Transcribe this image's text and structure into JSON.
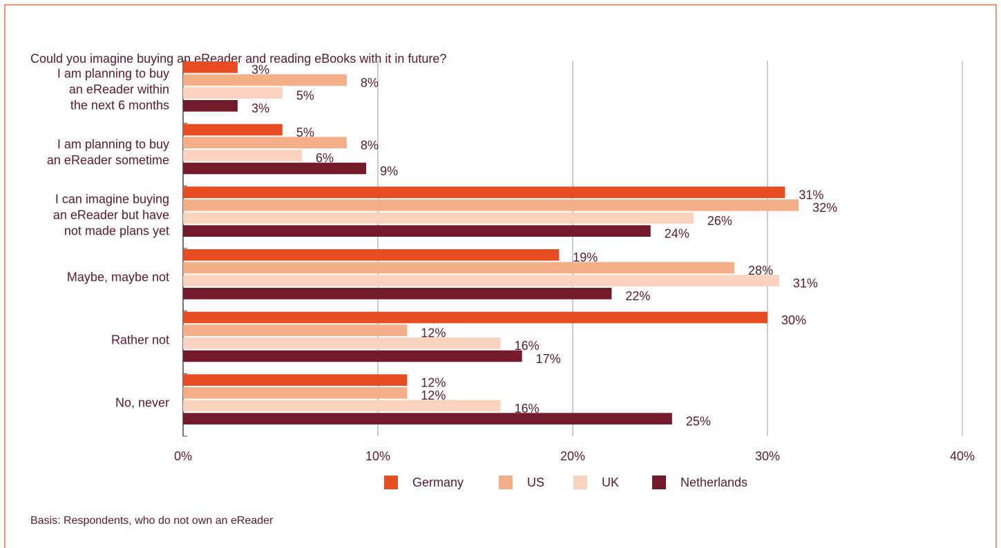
{
  "chart_data": {
    "type": "bar",
    "orientation": "horizontal",
    "title": "Could you imagine buying an eReader and reading eBooks with it in future?",
    "note": "Basis: Respondents, who do not own an eReader",
    "categories": [
      "I am planning to buy\nan eReader within\nthe next 6 months",
      "I am planning to buy\nan eReader sometime",
      "I can imagine buying\nan eReader but have\nnot made plans yet",
      "Maybe, maybe not",
      "Rather not",
      "No, never"
    ],
    "series": [
      {
        "name": "Germany",
        "color": "#e84c22",
        "values": [
          2.8,
          5.1,
          30.9,
          19.3,
          30.0,
          11.5
        ],
        "value_labels": [
          "3%",
          "5%",
          "31%",
          "19%",
          "30%",
          "12%"
        ]
      },
      {
        "name": "US",
        "color": "#f4ae88",
        "values": [
          8.4,
          8.4,
          31.6,
          28.3,
          11.5,
          11.5
        ],
        "value_labels": [
          "8%",
          "8%",
          "32%",
          "28%",
          "12%",
          "12%"
        ]
      },
      {
        "name": "UK",
        "color": "#f9d3bd",
        "values": [
          5.1,
          6.1,
          26.2,
          30.6,
          16.3,
          16.3
        ],
        "value_labels": [
          "5%",
          "6%",
          "26%",
          "31%",
          "16%",
          "16%"
        ]
      },
      {
        "name": "Netherlands",
        "color": "#731b2c",
        "values": [
          2.8,
          9.4,
          24.0,
          22.0,
          17.4,
          25.1
        ],
        "value_labels": [
          "3%",
          "9%",
          "24%",
          "22%",
          "17%",
          "25%"
        ]
      }
    ],
    "xlim": [
      0,
      40
    ],
    "xticks": [
      {
        "value": 0,
        "label": "0%"
      },
      {
        "value": 10,
        "label": "10%"
      },
      {
        "value": 20,
        "label": "20%"
      },
      {
        "value": 30,
        "label": "30%"
      },
      {
        "value": 40,
        "label": "40%"
      }
    ],
    "grid": true,
    "legend": "bottom"
  }
}
